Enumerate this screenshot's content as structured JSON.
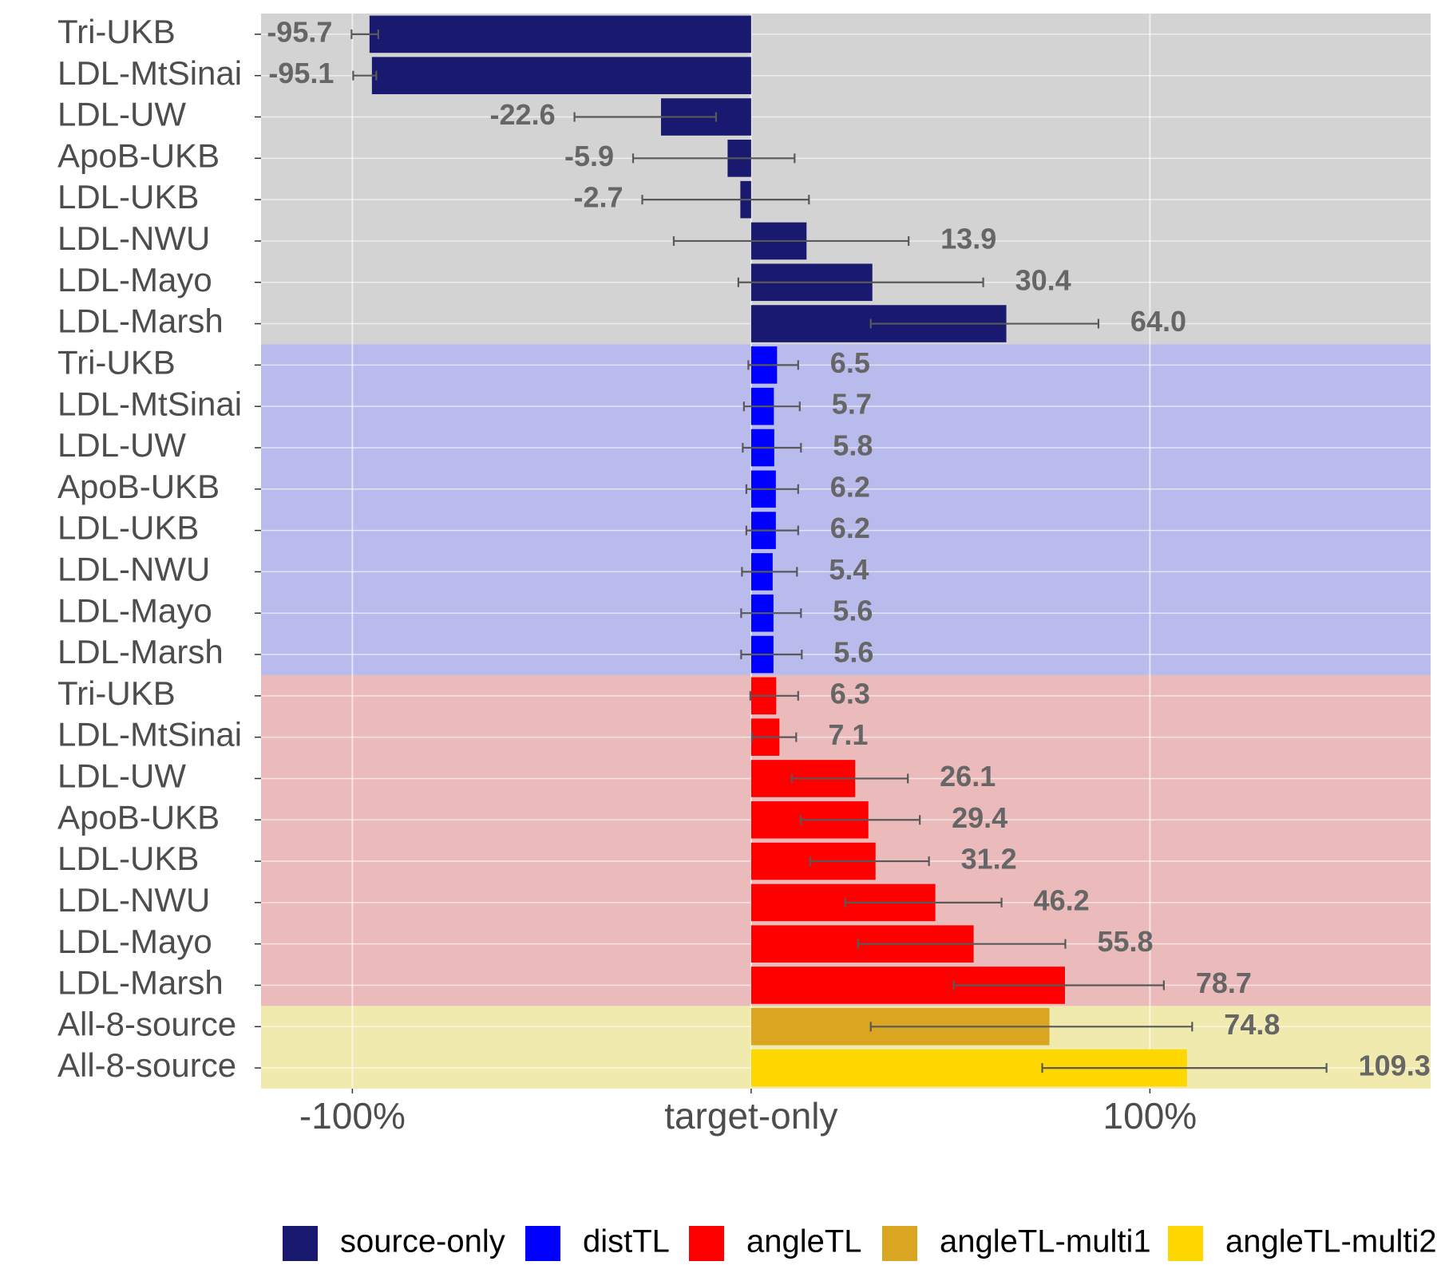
{
  "chart_data": {
    "type": "bar",
    "orientation": "horizontal",
    "xlim": [
      -122.9,
      170.4
    ],
    "xticks": [
      {
        "value": -100,
        "label": "-100%"
      },
      {
        "value": 0,
        "label": "target-only"
      },
      {
        "value": 100,
        "label": "100%"
      }
    ],
    "grid": true,
    "legend": "bottom",
    "series": [
      {
        "name": "source-only",
        "color": "#191970",
        "background": "#d3d3d3",
        "categories": [
          "Tri-UKB",
          "LDL-MtSinai",
          "LDL-UW",
          "ApoB-UKB",
          "LDL-UKB",
          "LDL-NWU",
          "LDL-Mayo",
          "LDL-Marsh"
        ],
        "values": [
          -95.7,
          -95.1,
          -22.6,
          -5.9,
          -2.7,
          13.9,
          30.4,
          64.0
        ],
        "value_labels": [
          "-95.7",
          "-95.1",
          "-22.6",
          "-5.9",
          "-2.7",
          "13.9",
          "30.4",
          "64.0"
        ],
        "errors_low": [
          -100.2,
          -99.8,
          -44.3,
          -29.6,
          -27.3,
          -19.4,
          -3.2,
          30.0
        ],
        "errors_high": [
          -93.5,
          -94.0,
          -8.8,
          10.9,
          14.5,
          39.5,
          58.2,
          87.1
        ]
      },
      {
        "name": "distTL",
        "color": "#0000ff",
        "background": "#b8bbec",
        "categories": [
          "Tri-UKB",
          "LDL-MtSinai",
          "LDL-UW",
          "ApoB-UKB",
          "LDL-UKB",
          "LDL-NWU",
          "LDL-Mayo",
          "LDL-Marsh"
        ],
        "values": [
          6.5,
          5.7,
          5.8,
          6.2,
          6.2,
          5.4,
          5.6,
          5.6
        ],
        "errors_low": [
          -0.7,
          -1.8,
          -2.1,
          -1.2,
          -1.2,
          -2.3,
          -2.5,
          -2.5
        ],
        "errors_high": [
          11.8,
          12.2,
          12.5,
          11.8,
          11.8,
          11.5,
          12.5,
          12.7
        ]
      },
      {
        "name": "angleTL",
        "color": "#ff0000",
        "background": "#ebbbbb",
        "categories": [
          "Tri-UKB",
          "LDL-MtSinai",
          "LDL-UW",
          "ApoB-UKB",
          "LDL-UKB",
          "LDL-NWU",
          "LDL-Mayo",
          "LDL-Marsh"
        ],
        "values": [
          6.3,
          7.1,
          26.1,
          29.4,
          31.2,
          46.2,
          55.8,
          78.7
        ],
        "errors_low": [
          -0.2,
          0.2,
          10.2,
          12.5,
          14.8,
          23.6,
          26.8,
          50.8
        ],
        "errors_high": [
          11.8,
          11.3,
          39.3,
          42.3,
          44.6,
          62.8,
          78.8,
          103.5
        ]
      },
      {
        "name": "angleTL-multi1",
        "color": "#daa520",
        "background": "#f0eaae",
        "categories": [
          "All-8-source"
        ],
        "values": [
          74.8
        ],
        "errors_low": [
          30.0
        ],
        "errors_high": [
          110.6
        ]
      },
      {
        "name": "angleTL-multi2",
        "color": "#ffd700",
        "background": "#f0eaae",
        "categories": [
          "All-8-source"
        ],
        "values": [
          109.3
        ],
        "errors_low": [
          73.0
        ],
        "errors_high": [
          144.3
        ]
      }
    ]
  }
}
